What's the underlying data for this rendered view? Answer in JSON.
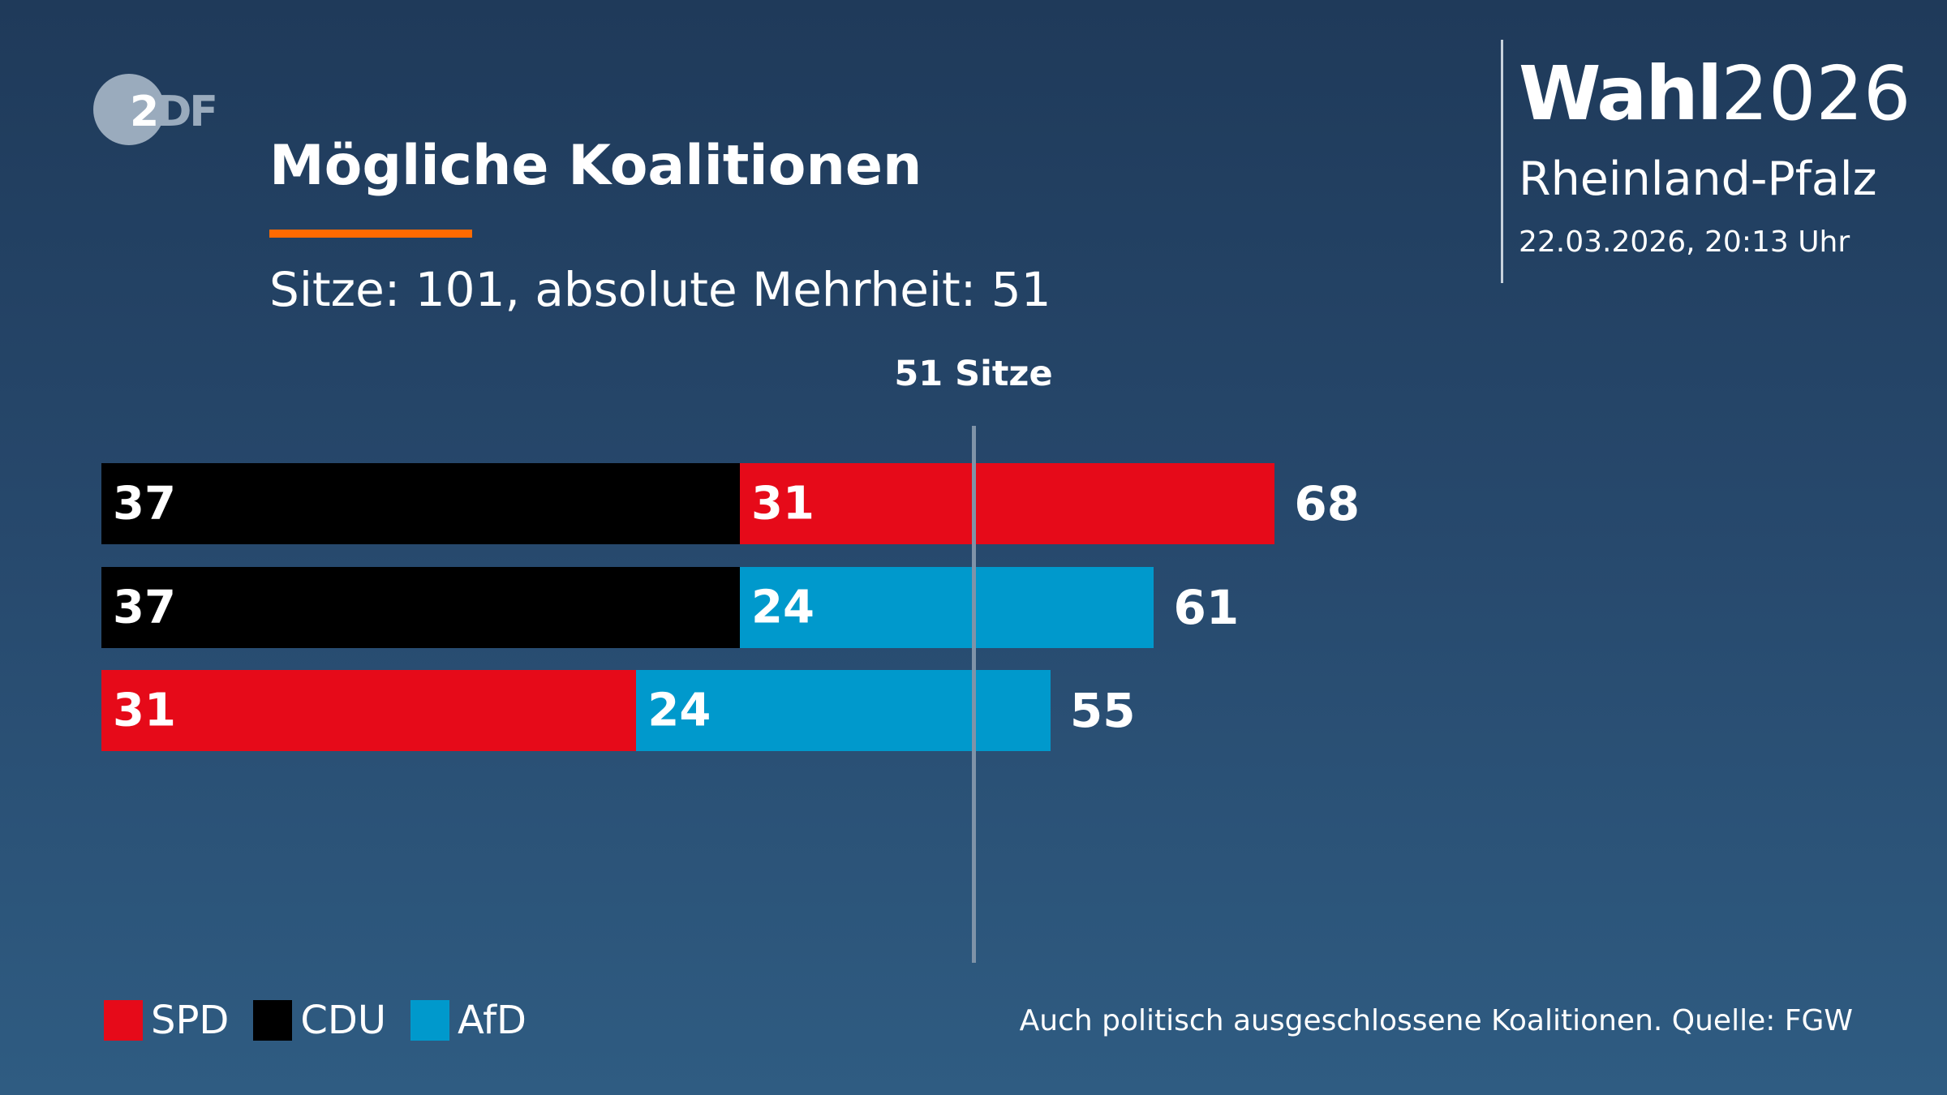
{
  "logo": {
    "text_two": "2",
    "text_df": "DF"
  },
  "header": {
    "title": "Mögliche Koalitionen",
    "accent_color": "#ff6a00",
    "subtitle": "Sitze: 101, absolute Mehrheit: 51"
  },
  "brand": {
    "bold": "Wahl",
    "year": "2026",
    "region": "Rheinland-Pfalz",
    "timestamp": "22.03.2026, 20:13 Uhr"
  },
  "chart_data": {
    "type": "bar",
    "orientation": "horizontal-stacked",
    "majority": 51,
    "majority_label": "51 Sitze",
    "total_seats": 101,
    "party_colors": {
      "SPD": "#e60a19",
      "CDU": "#000000",
      "AfD": "#0099cc"
    },
    "coalitions": [
      {
        "parts": [
          {
            "party": "CDU",
            "seats": 37
          },
          {
            "party": "SPD",
            "seats": 31
          }
        ],
        "total": 68
      },
      {
        "parts": [
          {
            "party": "CDU",
            "seats": 37
          },
          {
            "party": "AfD",
            "seats": 24
          }
        ],
        "total": 61
      },
      {
        "parts": [
          {
            "party": "SPD",
            "seats": 31
          },
          {
            "party": "AfD",
            "seats": 24
          }
        ],
        "total": 55
      }
    ],
    "legend": [
      "SPD",
      "CDU",
      "AfD"
    ],
    "legend_placement": "bottom-left"
  },
  "footer": "Auch politisch ausgeschlossene Koalitionen. Quelle: FGW"
}
